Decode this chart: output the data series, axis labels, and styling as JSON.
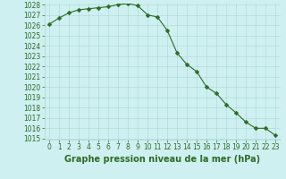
{
  "x": [
    0,
    1,
    2,
    3,
    4,
    5,
    6,
    7,
    8,
    9,
    10,
    11,
    12,
    13,
    14,
    15,
    16,
    17,
    18,
    19,
    20,
    21,
    22,
    23
  ],
  "y": [
    1026.1,
    1026.7,
    1027.2,
    1027.5,
    1027.6,
    1027.7,
    1027.8,
    1028.0,
    1028.1,
    1027.9,
    1027.0,
    1026.8,
    1025.5,
    1023.3,
    1022.2,
    1021.5,
    1020.0,
    1019.4,
    1018.3,
    1017.5,
    1016.6,
    1016.0,
    1016.0,
    1015.3
  ],
  "ylim_min": 1015,
  "ylim_max": 1028,
  "xlim_min": -0.5,
  "xlim_max": 23.5,
  "yticks": [
    1015,
    1016,
    1017,
    1018,
    1019,
    1020,
    1021,
    1022,
    1023,
    1024,
    1025,
    1026,
    1027,
    1028
  ],
  "xticks": [
    0,
    1,
    2,
    3,
    4,
    5,
    6,
    7,
    8,
    9,
    10,
    11,
    12,
    13,
    14,
    15,
    16,
    17,
    18,
    19,
    20,
    21,
    22,
    23
  ],
  "line_color": "#2d6b27",
  "marker": "D",
  "marker_size": 2.5,
  "bg_color": "#cff0f0",
  "grid_color": "#a8d8d8",
  "xlabel": "Graphe pression niveau de la mer (hPa)",
  "xlabel_color": "#2d6b27",
  "tick_color": "#2d6b27",
  "tick_fontsize": 5.5,
  "xlabel_fontsize": 7.0,
  "line_width": 0.8
}
